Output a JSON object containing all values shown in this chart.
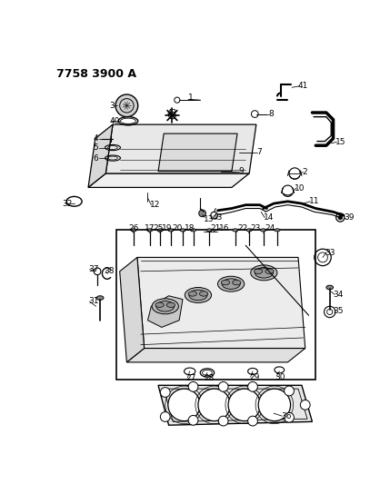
{
  "title": "7758 3900 A",
  "bg": "#ffffff",
  "fig_w": 4.29,
  "fig_h": 5.33,
  "dpi": 100
}
